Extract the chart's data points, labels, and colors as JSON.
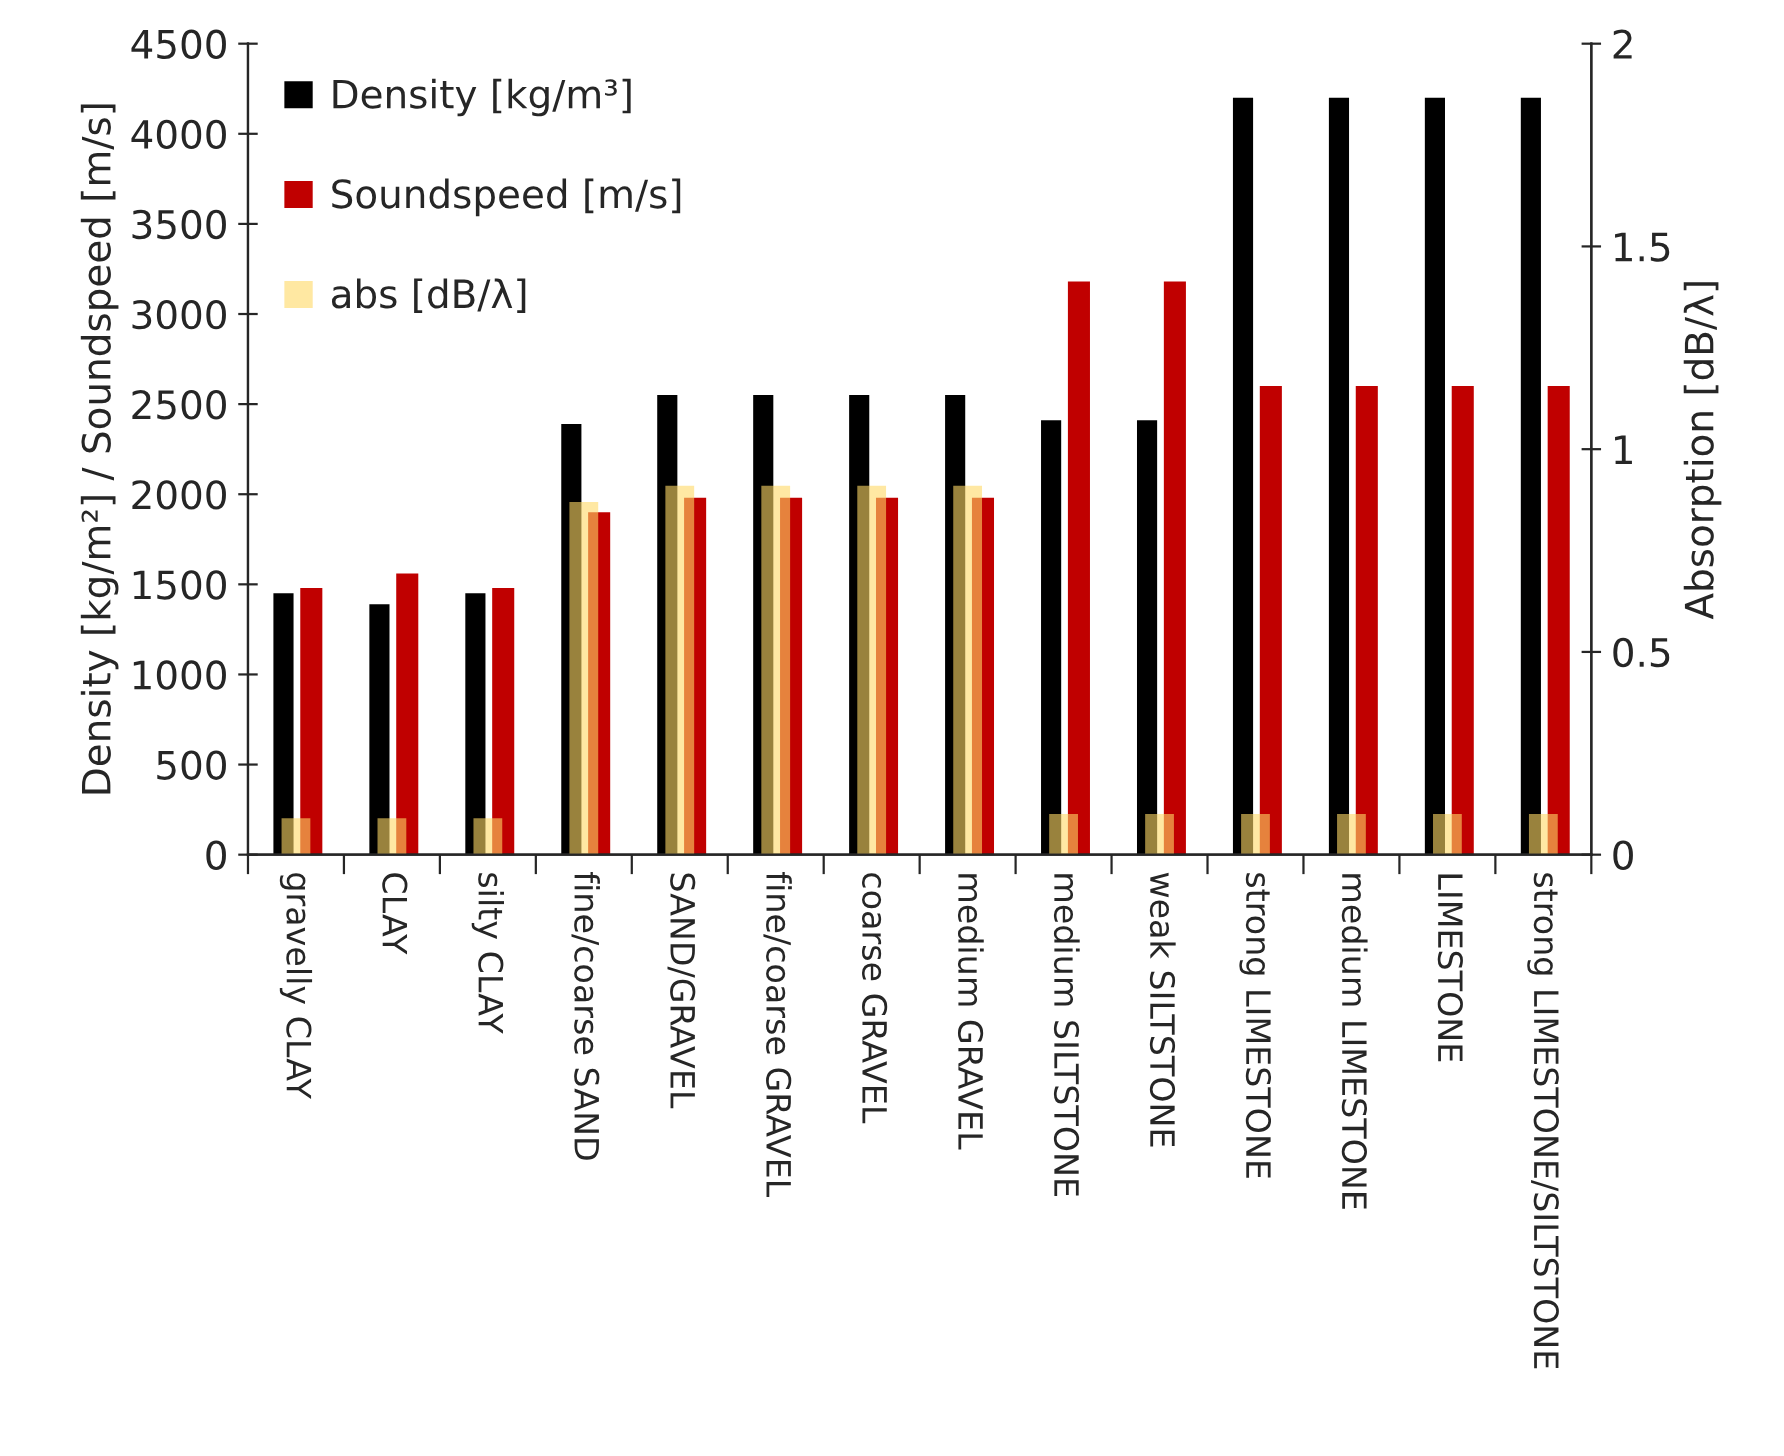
{
  "chart_data": {
    "type": "bar",
    "categories": [
      "gravelly CLAY",
      "CLAY",
      "silty CLAY",
      "fine/coarse SAND",
      "SAND/GRAVEL",
      "fine/coarse GRAVEL",
      "coarse GRAVEL",
      "medium GRAVEL",
      "medium SILTSTONE",
      "weak SILTSTONE",
      "strong LIMESTONE",
      "medium LIMESTONE",
      "LIMESTONE",
      "strong LIMESTONE/SILTSTONE"
    ],
    "series": [
      {
        "name": "Density [kg/m³]",
        "color": "#000000",
        "values": [
          1450,
          1390,
          1450,
          2390,
          2550,
          2550,
          2550,
          2550,
          2410,
          2410,
          4200,
          4200,
          4200,
          4200
        ]
      },
      {
        "name": "Soundspeed [m/s]",
        "color": "#c00000",
        "values": [
          1480,
          1560,
          1480,
          1900,
          1980,
          1980,
          1980,
          1980,
          3180,
          3180,
          2600,
          2600,
          2600,
          2600
        ]
      },
      {
        "name": "abs [dB/λ]",
        "color": "#ffd966",
        "axis": "y2",
        "values": [
          0.09,
          0.09,
          0.09,
          0.87,
          0.91,
          0.91,
          0.91,
          0.91,
          0.1,
          0.1,
          0.1,
          0.1,
          0.1,
          0.1
        ]
      }
    ],
    "ylabel": "Density [kg/m²] / Soundspeed [m/s]",
    "y2label": "Absorption [dB/λ]",
    "ylim": [
      0,
      4500
    ],
    "yticks": [
      0,
      500,
      1000,
      1500,
      2000,
      2500,
      3000,
      3500,
      4000,
      4500
    ],
    "y2lim": [
      0,
      2
    ],
    "y2ticks": [
      0,
      0.5,
      1,
      1.5,
      2
    ],
    "grid": false,
    "legend": "top left"
  }
}
